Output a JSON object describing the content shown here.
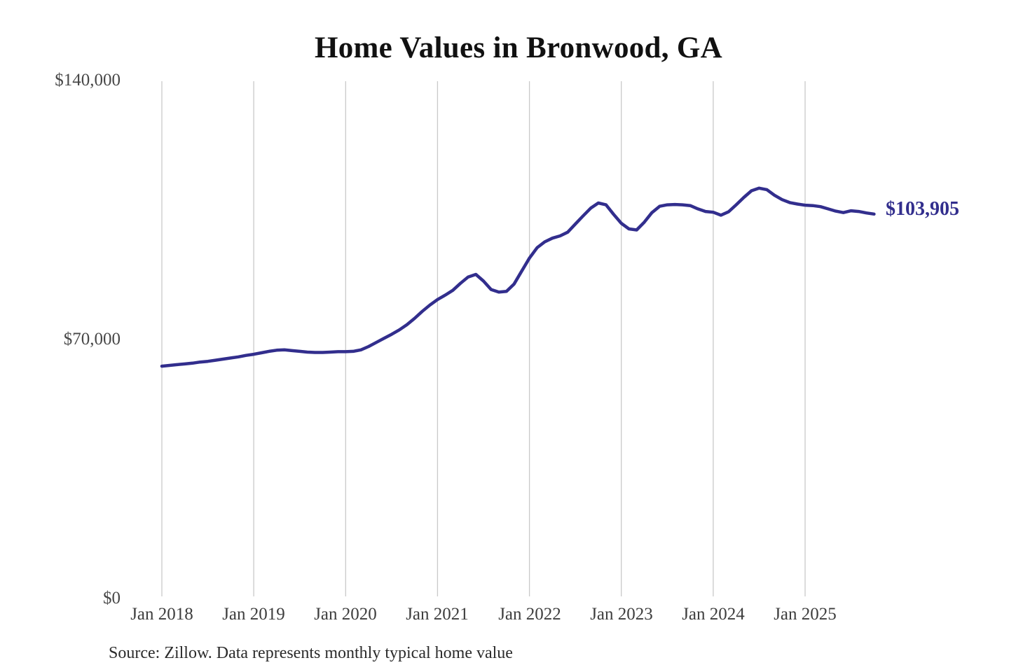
{
  "title": "Home Values in Bronwood, GA",
  "source_note": "Source: Zillow. Data represents monthly typical home value",
  "latest_value_label": "$103,905",
  "colors": {
    "line": "#322e8d",
    "grid": "#c9c9c9",
    "y_axis_label": "#474747",
    "x_axis_label": "#3d3d3d",
    "title": "#111111",
    "source": "#2b2b2b",
    "background": "#ffffff"
  },
  "chart_data": {
    "type": "line",
    "title": "Home Values in Bronwood, GA",
    "unit": "USD",
    "x_start_month": "Jan 2018",
    "x_end_month": "Oct 2025",
    "x_tick_labels": [
      "Jan 2018",
      "Jan 2019",
      "Jan 2020",
      "Jan 2021",
      "Jan 2022",
      "Jan 2023",
      "Jan 2024",
      "Jan 2025"
    ],
    "y_tick_labels": [
      "$0",
      "$70,000",
      "$140,000"
    ],
    "y_ticks": [
      0,
      70000,
      140000
    ],
    "ylim": [
      0,
      140000
    ],
    "grid": "vertical-only",
    "legend": "none",
    "last_point_label": "$103,905",
    "last_point_value": 103905,
    "series": [
      {
        "name": "Monthly typical home value",
        "values": [
          62800,
          63000,
          63200,
          63400,
          63600,
          63900,
          64100,
          64400,
          64700,
          65000,
          65300,
          65700,
          66000,
          66400,
          66800,
          67100,
          67200,
          67000,
          66800,
          66600,
          66500,
          66500,
          66600,
          66700,
          66700,
          66800,
          67200,
          68100,
          69200,
          70300,
          71400,
          72600,
          74000,
          75700,
          77600,
          79300,
          80800,
          82000,
          83300,
          85200,
          86900,
          87600,
          85800,
          83500,
          82800,
          83000,
          85000,
          88500,
          92000,
          94800,
          96400,
          97400,
          98000,
          99000,
          101200,
          103400,
          105500,
          106900,
          106400,
          103800,
          101400,
          99900,
          99600,
          101700,
          104300,
          106000,
          106400,
          106500,
          106400,
          106200,
          105300,
          104600,
          104400,
          103600,
          104500,
          106400,
          108400,
          110200,
          110900,
          110500,
          109000,
          107800,
          107000,
          106600,
          106300,
          106200,
          105900,
          105300,
          104700,
          104300,
          104800,
          104600,
          104200,
          103905
        ]
      }
    ]
  }
}
